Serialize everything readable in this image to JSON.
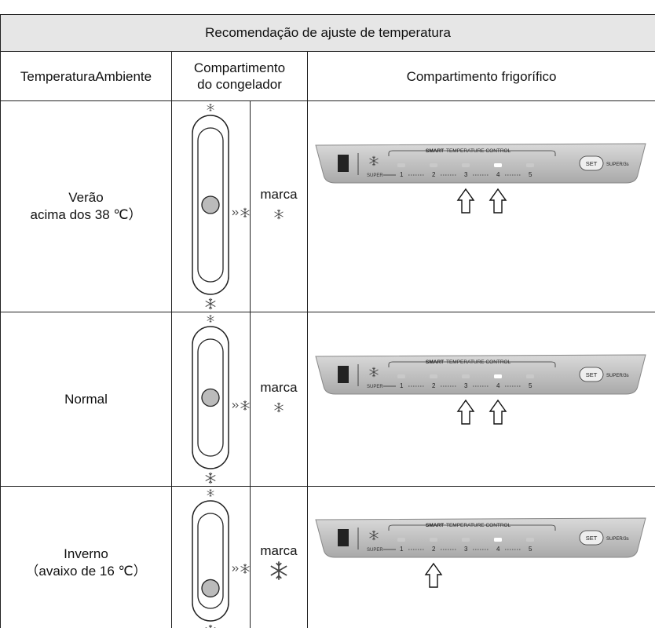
{
  "table": {
    "title": "Recomendação de ajuste de temperatura",
    "headers": [
      "TemperaturaAmbiente",
      "Compartimento do congelador",
      "Compartimento frigorífico"
    ],
    "rows": [
      {
        "ambient": [
          "Verão",
          "acima dos 38 ℃）"
        ],
        "marca": "marca"
      },
      {
        "ambient": [
          "Normal"
        ],
        "marca": "marca"
      },
      {
        "ambient": [
          "Inverno",
          "（avaixo de 16 ℃）"
        ],
        "marca": "marca"
      }
    ]
  },
  "panel": {
    "brand": "SMART",
    "label": "TEMPERATURE CONTROL",
    "super": "SUPER",
    "levels": [
      "1",
      "2",
      "3",
      "4",
      "5"
    ],
    "set": "SET",
    "set_hint": "SUPER/3s"
  }
}
